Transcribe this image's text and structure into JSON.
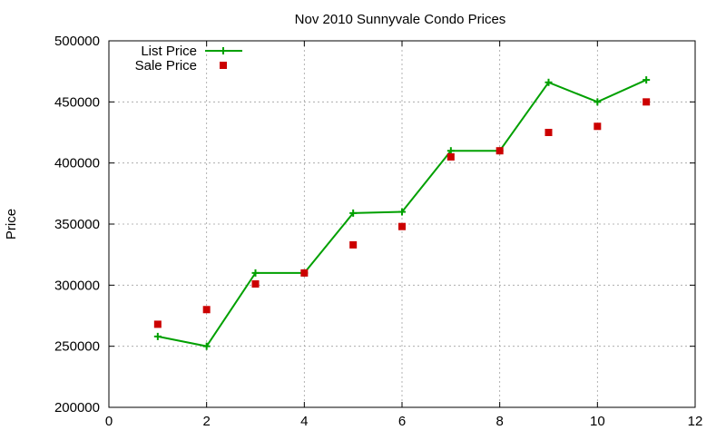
{
  "chart_data": {
    "type": "line",
    "title": "Nov 2010 Sunnyvale Condo Prices",
    "xlabel": "",
    "ylabel": "Price",
    "xlim": [
      0,
      12
    ],
    "ylim": [
      200000,
      500000
    ],
    "x_ticks": [
      0,
      2,
      4,
      6,
      8,
      10,
      12
    ],
    "y_ticks": [
      200000,
      250000,
      300000,
      350000,
      400000,
      450000,
      500000
    ],
    "grid": true,
    "legend_position": "top-left",
    "series": [
      {
        "name": "List Price",
        "style": "line-with-plus-markers",
        "color": "#00a000",
        "x": [
          1,
          2,
          3,
          4,
          5,
          6,
          7,
          8,
          9,
          10,
          11
        ],
        "y": [
          258000,
          250000,
          310000,
          310000,
          359000,
          360000,
          410000,
          410000,
          466000,
          450000,
          468000
        ]
      },
      {
        "name": "Sale Price",
        "style": "square-markers",
        "color": "#cc0000",
        "x": [
          1,
          2,
          3,
          4,
          5,
          6,
          7,
          8,
          9,
          10,
          11
        ],
        "y": [
          268000,
          280000,
          301000,
          310000,
          333000,
          348000,
          405000,
          410000,
          425000,
          430000,
          450000
        ]
      }
    ]
  }
}
